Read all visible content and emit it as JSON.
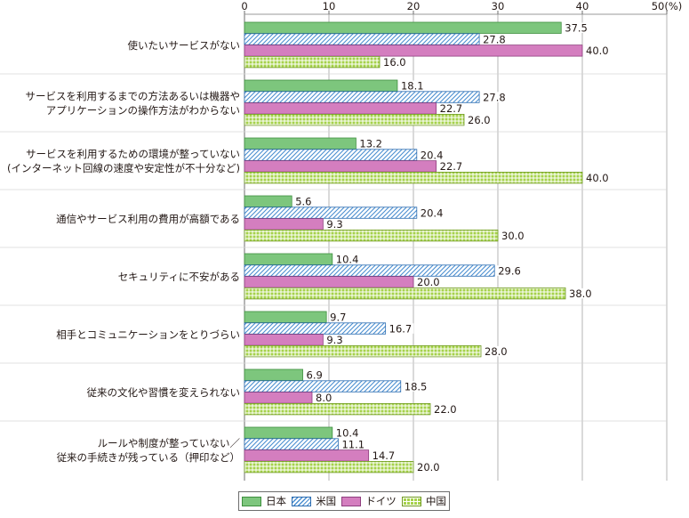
{
  "chart_data": {
    "type": "bar",
    "orientation": "horizontal",
    "unit_label": "(%)",
    "xlim": [
      0,
      50
    ],
    "xticks": [
      0,
      10,
      20,
      30,
      40,
      50
    ],
    "grid": true,
    "legend_position": "bottom",
    "categories": [
      "使いたいサービスがない",
      "サービスを利用するまでの方法あるいは機器や\nアプリケーションの操作方法がわからない",
      "サービスを利用するための環境が整っていない\n(インターネット回線の速度や安定性が不十分など)",
      "通信やサービス利用の費用が高額である",
      "セキュリティに不安がある",
      "相手とコミュニケーションをとりづらい",
      "従来の文化や習慣を変えられない",
      "ルールや制度が整っていない／\n従来の手続きが残っている（押印など）"
    ],
    "series": [
      {
        "name": "日本",
        "color": "#7dc67d",
        "pattern": "solid",
        "values": [
          37.5,
          18.1,
          13.2,
          5.6,
          10.4,
          9.7,
          6.9,
          10.4
        ]
      },
      {
        "name": "米国",
        "color": "#4a8ed0",
        "pattern": "diagonal-hatch",
        "values": [
          27.8,
          27.8,
          20.4,
          20.4,
          29.6,
          16.7,
          18.5,
          11.1
        ]
      },
      {
        "name": "ドイツ",
        "color": "#d47ebf",
        "pattern": "solid",
        "values": [
          40.0,
          22.7,
          22.7,
          9.3,
          20.0,
          9.3,
          8.0,
          14.7
        ]
      },
      {
        "name": "中国",
        "color": "#a5d24a",
        "pattern": "grid",
        "values": [
          16.0,
          26.0,
          40.0,
          30.0,
          38.0,
          28.0,
          22.0,
          20.0
        ]
      }
    ]
  }
}
